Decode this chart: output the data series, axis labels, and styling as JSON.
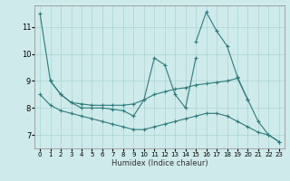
{
  "xlabel": "Humidex (Indice chaleur)",
  "background_color": "#ceeaea",
  "grid_color": "#aad4d4",
  "line_color": "#2e7c7c",
  "xlim": [
    -0.5,
    23.5
  ],
  "ylim": [
    6.5,
    11.8
  ],
  "yticks": [
    7,
    8,
    9,
    10,
    11
  ],
  "xticks": [
    0,
    1,
    2,
    3,
    4,
    5,
    6,
    7,
    8,
    9,
    10,
    11,
    12,
    13,
    14,
    15,
    16,
    17,
    18,
    19,
    20,
    21,
    22,
    23
  ],
  "series": [
    [
      11.5,
      9.0,
      null,
      null,
      null,
      null,
      null,
      null,
      null,
      null,
      null,
      null,
      null,
      null,
      null,
      null,
      null,
      null,
      null,
      null,
      null,
      null,
      null,
      null
    ],
    [
      null,
      null,
      8.5,
      8.2,
      8.0,
      8.0,
      8.0,
      7.95,
      7.9,
      7.7,
      8.3,
      9.85,
      9.6,
      8.5,
      8.0,
      9.85,
      null,
      null,
      null,
      null,
      null,
      null,
      null,
      null
    ],
    [
      null,
      null,
      8.5,
      8.2,
      8.15,
      8.1,
      8.1,
      8.1,
      8.1,
      8.15,
      8.3,
      8.5,
      8.6,
      8.7,
      8.75,
      8.85,
      8.9,
      8.95,
      9.0,
      9.1,
      8.3,
      null,
      null,
      null
    ],
    [
      null,
      null,
      null,
      null,
      null,
      null,
      null,
      null,
      null,
      null,
      null,
      null,
      null,
      null,
      null,
      10.45,
      11.55,
      10.85,
      10.3,
      9.15,
      8.3,
      7.5,
      7.0,
      6.75
    ],
    [
      8.5,
      8.1,
      7.9,
      7.8,
      7.7,
      7.6,
      7.5,
      7.4,
      7.3,
      7.2,
      7.2,
      7.3,
      7.4,
      7.5,
      7.6,
      7.7,
      7.8,
      7.8,
      7.7,
      7.5,
      7.3,
      7.1,
      7.0,
      6.75
    ]
  ],
  "connected_series": [
    {
      "x": [
        0,
        1
      ],
      "y": [
        11.5,
        9.0
      ]
    },
    {
      "x": [
        1,
        2,
        3,
        4,
        5,
        6,
        7,
        8,
        9,
        10,
        11,
        12,
        13,
        14,
        15
      ],
      "y": [
        9.0,
        8.5,
        8.2,
        8.0,
        8.0,
        8.0,
        7.95,
        7.9,
        7.7,
        8.3,
        9.85,
        9.6,
        8.5,
        8.0,
        9.85
      ]
    },
    {
      "x": [
        1,
        2,
        3,
        4,
        5,
        6,
        7,
        8,
        9,
        10,
        11,
        12,
        13,
        14,
        15,
        16,
        17,
        18,
        19,
        20
      ],
      "y": [
        9.0,
        8.5,
        8.2,
        8.15,
        8.1,
        8.1,
        8.1,
        8.1,
        8.15,
        8.3,
        8.5,
        8.6,
        8.7,
        8.75,
        8.85,
        8.9,
        8.95,
        9.0,
        9.1,
        8.3
      ]
    },
    {
      "x": [
        15,
        16,
        17,
        18,
        19,
        20,
        21,
        22,
        23
      ],
      "y": [
        10.45,
        11.55,
        10.85,
        10.3,
        9.15,
        8.3,
        7.5,
        7.0,
        6.75
      ]
    },
    {
      "x": [
        0,
        1,
        2,
        3,
        4,
        5,
        6,
        7,
        8,
        9,
        10,
        11,
        12,
        13,
        14,
        15,
        16,
        17,
        18,
        19,
        20,
        21,
        22,
        23
      ],
      "y": [
        8.5,
        8.1,
        7.9,
        7.8,
        7.7,
        7.6,
        7.5,
        7.4,
        7.3,
        7.2,
        7.2,
        7.3,
        7.4,
        7.5,
        7.6,
        7.7,
        7.8,
        7.8,
        7.7,
        7.5,
        7.3,
        7.1,
        7.0,
        6.75
      ]
    }
  ]
}
